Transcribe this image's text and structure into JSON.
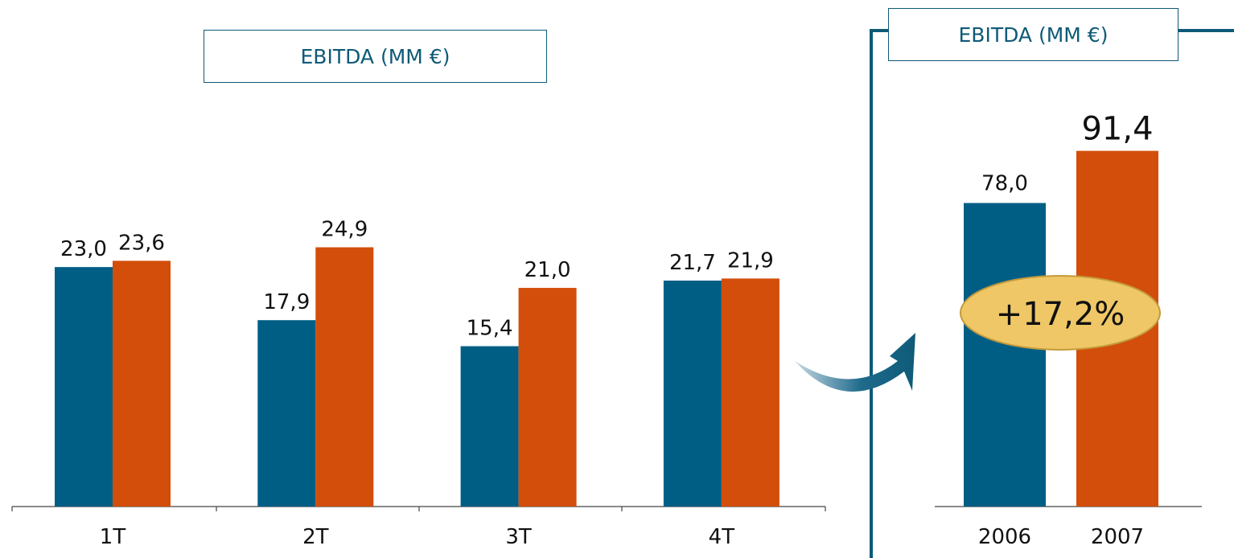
{
  "chart_data": [
    {
      "type": "bar",
      "title": "EBITDA (MM €)",
      "categories": [
        "1T",
        "2T",
        "3T",
        "4T"
      ],
      "series": [
        {
          "values": [
            23.0,
            17.9,
            15.4,
            21.7
          ],
          "color": "#005e85"
        },
        {
          "values": [
            23.6,
            24.9,
            21.0,
            21.9
          ],
          "color": "#d24e0a"
        }
      ],
      "value_labels": [
        [
          "23,0",
          "17,9",
          "15,4",
          "21,7"
        ],
        [
          "23,6",
          "24,9",
          "21,0",
          "21,9"
        ]
      ],
      "ylim": [
        0,
        30
      ],
      "grid": false,
      "legend": "none"
    },
    {
      "type": "bar",
      "title": "EBITDA (MM €)",
      "categories": [
        "2006",
        "2007"
      ],
      "values": [
        78.0,
        91.4
      ],
      "value_labels": [
        "78,0",
        "91,4"
      ],
      "colors": [
        "#005e85",
        "#d24e0a"
      ],
      "ylim": [
        0,
        100
      ],
      "annotation": "+17,2%",
      "grid": false,
      "legend": "none"
    }
  ],
  "colors": {
    "accent": "#0e5a78",
    "badge_fill": "#efc766",
    "badge_stroke": "#c49a3a"
  }
}
